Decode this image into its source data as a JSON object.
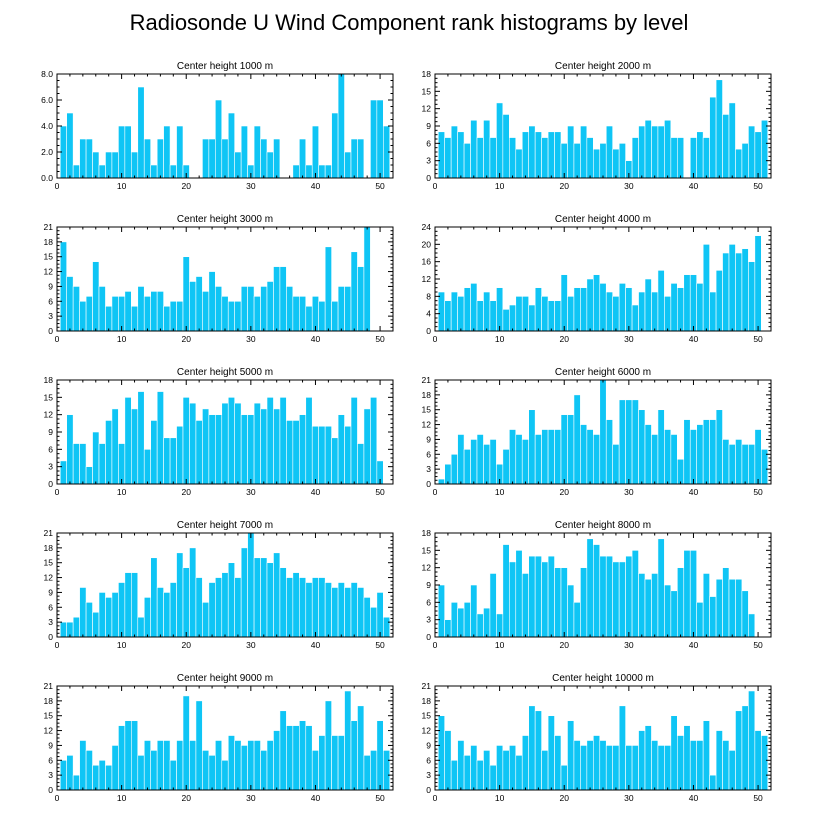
{
  "title": "Radiosonde U Wind Component rank histograms by level",
  "bar_color": "#0fc5f5",
  "chart_data": [
    {
      "type": "bar",
      "title": "Center height 1000 m",
      "ylim": [
        0,
        8
      ],
      "yticks": [
        "0.0",
        "2.0",
        "4.0",
        "6.0",
        "8.0"
      ],
      "xticks": [
        "0",
        "10",
        "20",
        "30",
        "40",
        "50"
      ],
      "xlim": [
        0,
        52
      ],
      "values": [
        4,
        5,
        1,
        3,
        3,
        2,
        1,
        2,
        2,
        4,
        4,
        2,
        7,
        3,
        1,
        3,
        4,
        1,
        4,
        1,
        0,
        0,
        3,
        3,
        6,
        3,
        5,
        2,
        4,
        1,
        4,
        3,
        2,
        3,
        0,
        0,
        1,
        3,
        1,
        4,
        1,
        1,
        5,
        8,
        2,
        3,
        3,
        0,
        6,
        6,
        4
      ]
    },
    {
      "type": "bar",
      "title": "Center height 2000 m",
      "ylim": [
        0,
        18
      ],
      "yticks": [
        "0",
        "3",
        "6",
        "9",
        "12",
        "15",
        "18"
      ],
      "xticks": [
        "0",
        "10",
        "20",
        "30",
        "40",
        "50"
      ],
      "xlim": [
        0,
        52
      ],
      "values": [
        8,
        7,
        9,
        8,
        6,
        10,
        7,
        10,
        7,
        13,
        11,
        7,
        5,
        8,
        9,
        8,
        7,
        8,
        8,
        6,
        9,
        6,
        9,
        7,
        5,
        6,
        9,
        5,
        6,
        3,
        7,
        9,
        10,
        9,
        9,
        10,
        7,
        7,
        0,
        7,
        8,
        7,
        14,
        17,
        11,
        13,
        5,
        6,
        9,
        8,
        10
      ]
    },
    {
      "type": "bar",
      "title": "Center height 3000 m",
      "ylim": [
        0,
        21
      ],
      "yticks": [
        "0",
        "3",
        "6",
        "9",
        "12",
        "15",
        "18",
        "21"
      ],
      "xticks": [
        "0",
        "10",
        "20",
        "30",
        "40",
        "50"
      ],
      "xlim": [
        0,
        52
      ],
      "values": [
        18,
        11,
        9,
        6,
        7,
        14,
        9,
        5,
        7,
        7,
        8,
        5,
        9,
        7,
        8,
        8,
        5,
        6,
        6,
        15,
        10,
        11,
        8,
        12,
        9,
        7,
        6,
        6,
        9,
        9,
        7,
        9,
        10,
        13,
        13,
        9,
        7,
        7,
        5,
        7,
        6,
        17,
        6,
        9,
        9,
        16,
        13,
        21,
        0,
        0,
        0
      ]
    },
    {
      "type": "bar",
      "title": "Center height 4000 m",
      "ylim": [
        0,
        24
      ],
      "yticks": [
        "0",
        "4",
        "8",
        "12",
        "16",
        "20",
        "24"
      ],
      "xticks": [
        "0",
        "10",
        "20",
        "30",
        "40",
        "50"
      ],
      "xlim": [
        0,
        52
      ],
      "values": [
        9,
        7,
        9,
        8,
        10,
        11,
        7,
        9,
        7,
        10,
        5,
        6,
        8,
        8,
        6,
        10,
        8,
        7,
        7,
        13,
        8,
        10,
        10,
        12,
        13,
        11,
        9,
        8,
        11,
        10,
        6,
        9,
        12,
        9,
        14,
        8,
        11,
        10,
        13,
        13,
        11,
        20,
        9,
        14,
        18,
        20,
        18,
        19,
        16,
        22,
        0
      ]
    },
    {
      "type": "bar",
      "title": "Center height 5000 m",
      "ylim": [
        0,
        18
      ],
      "yticks": [
        "0",
        "3",
        "6",
        "9",
        "12",
        "15",
        "18"
      ],
      "xticks": [
        "0",
        "10",
        "20",
        "30",
        "40",
        "50"
      ],
      "xlim": [
        0,
        52
      ],
      "values": [
        4,
        12,
        7,
        7,
        3,
        9,
        7,
        11,
        13,
        7,
        15,
        13,
        16,
        6,
        11,
        16,
        8,
        8,
        10,
        15,
        14,
        11,
        13,
        12,
        12,
        14,
        15,
        14,
        12,
        12,
        14,
        13,
        15,
        13,
        15,
        11,
        11,
        12,
        15,
        10,
        10,
        10,
        8,
        12,
        10,
        15,
        7,
        13,
        15,
        4,
        0
      ]
    },
    {
      "type": "bar",
      "title": "Center height 6000 m",
      "ylim": [
        0,
        21
      ],
      "yticks": [
        "0",
        "3",
        "6",
        "9",
        "12",
        "15",
        "18",
        "21"
      ],
      "xticks": [
        "0",
        "10",
        "20",
        "30",
        "40",
        "50"
      ],
      "xlim": [
        0,
        52
      ],
      "values": [
        1,
        4,
        6,
        10,
        7,
        9,
        10,
        8,
        9,
        4,
        7,
        11,
        10,
        9,
        15,
        10,
        11,
        11,
        11,
        14,
        14,
        18,
        12,
        11,
        10,
        21,
        13,
        8,
        17,
        17,
        17,
        15,
        12,
        10,
        15,
        11,
        10,
        5,
        13,
        11,
        12,
        13,
        13,
        15,
        9,
        8,
        9,
        8,
        8,
        11,
        7
      ]
    },
    {
      "type": "bar",
      "title": "Center height 7000 m",
      "ylim": [
        0,
        21
      ],
      "yticks": [
        "0",
        "3",
        "6",
        "9",
        "12",
        "15",
        "18",
        "21"
      ],
      "xticks": [
        "0",
        "10",
        "20",
        "30",
        "40",
        "50"
      ],
      "xlim": [
        0,
        52
      ],
      "values": [
        3,
        3,
        4,
        10,
        7,
        5,
        9,
        8,
        9,
        11,
        13,
        13,
        4,
        8,
        16,
        10,
        9,
        11,
        17,
        14,
        18,
        12,
        7,
        11,
        12,
        13,
        15,
        12,
        18,
        21,
        16,
        16,
        15,
        17,
        14,
        12,
        13,
        12,
        11,
        12,
        12,
        11,
        10,
        11,
        10,
        11,
        10,
        8,
        6,
        9,
        4
      ]
    },
    {
      "type": "bar",
      "title": "Center height 8000 m",
      "ylim": [
        0,
        18
      ],
      "yticks": [
        "0",
        "3",
        "6",
        "9",
        "12",
        "15",
        "18"
      ],
      "xticks": [
        "0",
        "10",
        "20",
        "30",
        "40",
        "50"
      ],
      "xlim": [
        0,
        52
      ],
      "values": [
        9,
        3,
        6,
        5,
        6,
        9,
        4,
        5,
        11,
        4,
        16,
        13,
        15,
        11,
        14,
        14,
        13,
        14,
        12,
        12,
        9,
        6,
        12,
        17,
        16,
        14,
        14,
        13,
        13,
        14,
        15,
        11,
        10,
        11,
        17,
        9,
        8,
        12,
        15,
        15,
        6,
        11,
        7,
        10,
        12,
        10,
        10,
        8,
        4,
        0,
        0
      ]
    },
    {
      "type": "bar",
      "title": "Center height 9000 m",
      "ylim": [
        0,
        21
      ],
      "yticks": [
        "0",
        "3",
        "6",
        "9",
        "12",
        "15",
        "18",
        "21"
      ],
      "xticks": [
        "0",
        "10",
        "20",
        "30",
        "40",
        "50"
      ],
      "xlim": [
        0,
        52
      ],
      "values": [
        6,
        7,
        3,
        10,
        8,
        5,
        6,
        5,
        9,
        13,
        14,
        14,
        7,
        10,
        8,
        10,
        10,
        6,
        10,
        19,
        10,
        18,
        8,
        7,
        10,
        6,
        11,
        10,
        9,
        10,
        10,
        8,
        10,
        12,
        16,
        13,
        13,
        14,
        13,
        8,
        11,
        18,
        11,
        11,
        20,
        14,
        17,
        7,
        8,
        14,
        8
      ]
    },
    {
      "type": "bar",
      "title": "Center height 10000 m",
      "ylim": [
        0,
        21
      ],
      "yticks": [
        "0",
        "3",
        "6",
        "9",
        "12",
        "15",
        "18",
        "21"
      ],
      "xticks": [
        "0",
        "10",
        "20",
        "30",
        "40",
        "50"
      ],
      "xlim": [
        0,
        52
      ],
      "values": [
        15,
        12,
        6,
        10,
        7,
        9,
        6,
        8,
        5,
        9,
        8,
        9,
        7,
        11,
        17,
        16,
        8,
        15,
        11,
        5,
        14,
        10,
        9,
        10,
        11,
        10,
        9,
        9,
        17,
        9,
        9,
        12,
        13,
        10,
        9,
        9,
        15,
        11,
        13,
        10,
        10,
        14,
        3,
        12,
        10,
        8,
        16,
        17,
        20,
        12,
        11
      ]
    }
  ]
}
